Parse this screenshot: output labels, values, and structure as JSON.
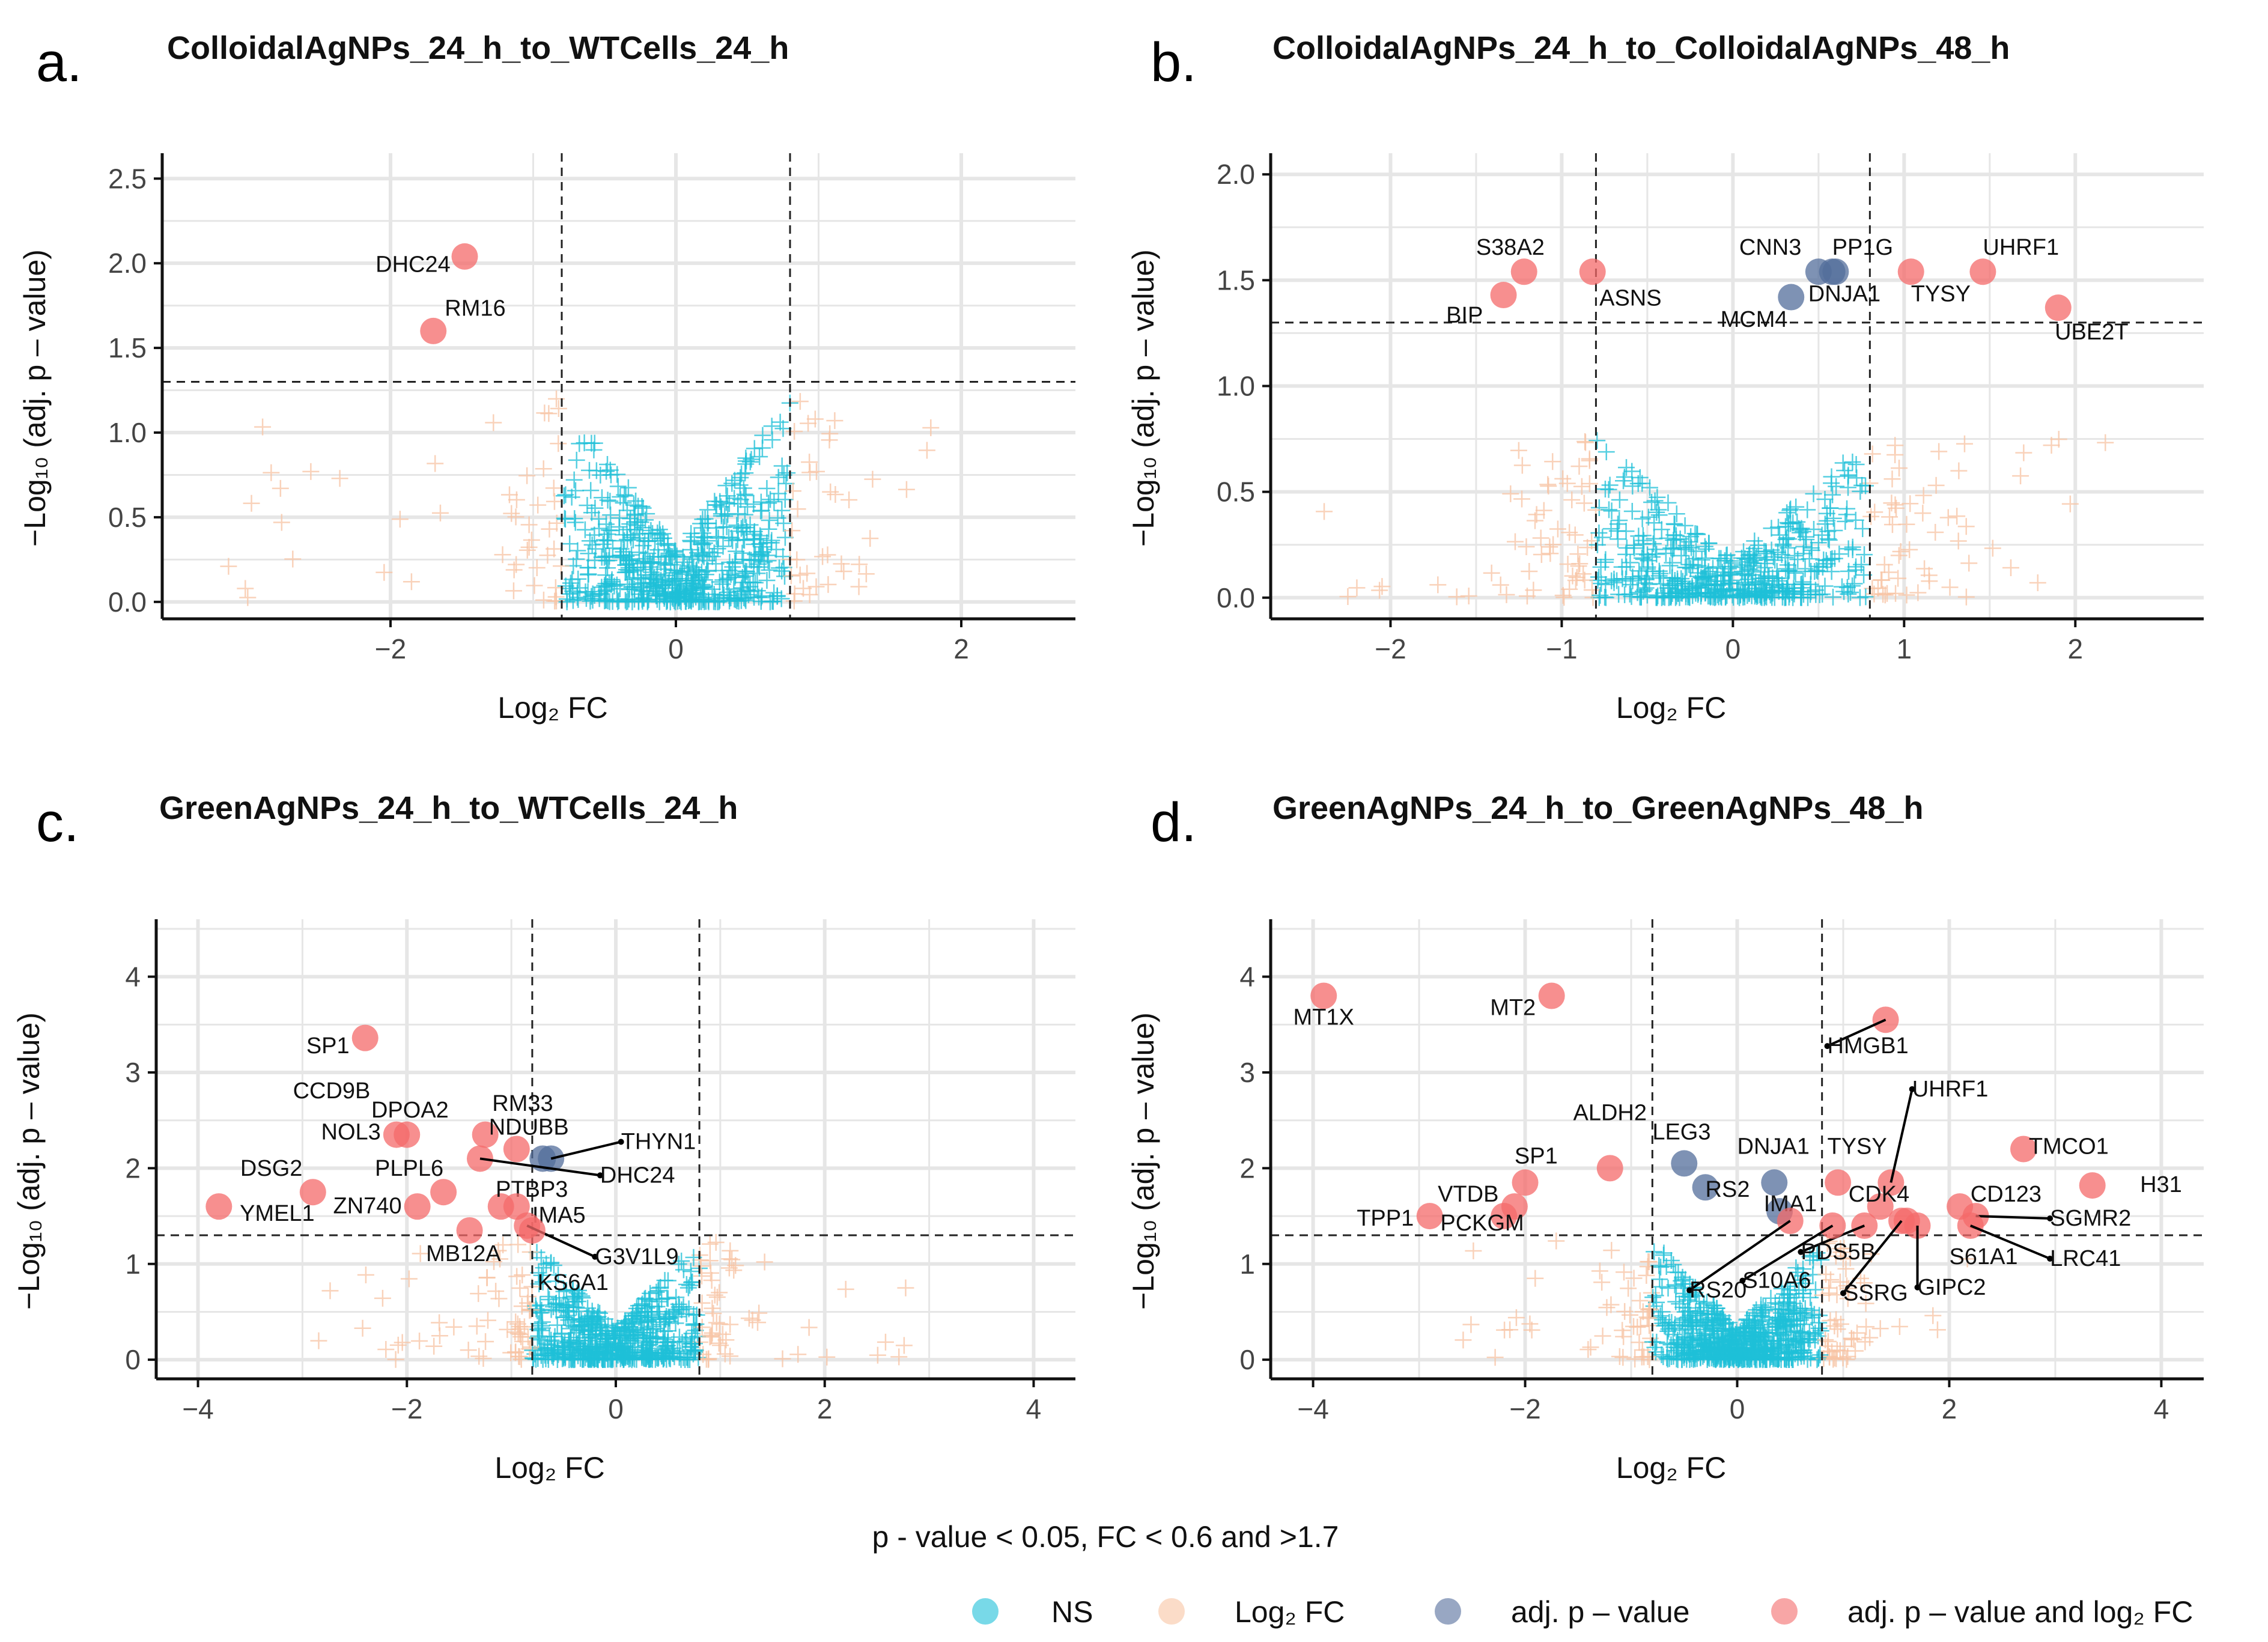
{
  "colors": {
    "ns": "#1ec0d8",
    "log2fc": "#f8c4a4",
    "adjp": "#536d9b",
    "both": "#f46a6a",
    "grid": "#e6e6e6",
    "axis": "#111111"
  },
  "legend": {
    "title": "p - value < 0.05, FC < 0.6 and >1.7",
    "items": [
      {
        "key": "ns",
        "label": "NS"
      },
      {
        "key": "log2fc",
        "label": "Log₂ FC"
      },
      {
        "key": "adjp",
        "label": "adj. p – value"
      },
      {
        "key": "both",
        "label": "adj. p – value and log₂ FC"
      }
    ]
  },
  "chart_data": [
    {
      "letter": "a.",
      "type": "scatter",
      "title": "ColloidalAgNPs_24_h_to_WTCells_24_h",
      "xlabel": "Log₂ FC",
      "ylabel": "−Log₁₀ (adj. p – value)",
      "xlim": [
        -3.6,
        2.8
      ],
      "ylim": [
        -0.1,
        2.65
      ],
      "xticks": [
        -2,
        0,
        2
      ],
      "xtick_labels": [
        "−2",
        "0",
        "2"
      ],
      "yticks": [
        0,
        0.5,
        1,
        1.5,
        2,
        2.5
      ],
      "ytick_labels": [
        "0.0",
        "0.5",
        "1.0",
        "1.5",
        "2.0",
        "2.5"
      ],
      "fc_cutoffs": [
        -0.8,
        0.8
      ],
      "p_cutoff": 1.3,
      "cloud": {
        "seed": 11,
        "xspan": [
          -3.2,
          1.9
        ],
        "outer": 1.2,
        "scale": 1.4,
        "n": 700
      },
      "points": [
        {
          "gene": "DHC24",
          "x": -1.48,
          "y": 2.04,
          "cat": "both",
          "label_x": -1.58,
          "label_y": 1.95,
          "anchor": "end"
        },
        {
          "gene": "RM16",
          "x": -1.7,
          "y": 1.6,
          "cat": "both",
          "label_x": -1.62,
          "label_y": 1.69,
          "anchor": "start"
        }
      ]
    },
    {
      "letter": "b.",
      "type": "scatter",
      "title": "ColloidalAgNPs_24_h_to_ColloidalAgNPs_48_h",
      "xlabel": "Log₂ FC",
      "ylabel": "−Log₁₀ (adj. p – value)",
      "xlim": [
        -2.7,
        2.75
      ],
      "ylim": [
        -0.1,
        2.1
      ],
      "xticks": [
        -2,
        -1,
        0,
        1,
        2
      ],
      "xtick_labels": [
        "−2",
        "−1",
        "0",
        "1",
        "2"
      ],
      "yticks": [
        0,
        0.5,
        1,
        1.5,
        2
      ],
      "ytick_labels": [
        "0.0",
        "0.5",
        "1.0",
        "1.5",
        "2.0"
      ],
      "fc_cutoffs": [
        -0.8,
        0.8
      ],
      "p_cutoff": 1.3,
      "cloud": {
        "seed": 23,
        "xspan": [
          -2.4,
          2.2
        ],
        "outer": 0.75,
        "scale": 1.6,
        "n": 650
      },
      "points": [
        {
          "gene": "S38A2",
          "x": -1.22,
          "y": 1.54,
          "cat": "both",
          "label_x": -1.1,
          "label_y": 1.62,
          "anchor": "end"
        },
        {
          "gene": "ASNS",
          "x": -0.82,
          "y": 1.54,
          "cat": "both",
          "label_x": -0.78,
          "label_y": 1.38,
          "anchor": "start"
        },
        {
          "gene": "BIP",
          "x": -1.34,
          "y": 1.43,
          "cat": "both",
          "label_x": -1.46,
          "label_y": 1.3,
          "anchor": "end"
        },
        {
          "gene": "CNN3",
          "x": 0.5,
          "y": 1.54,
          "cat": "adjp",
          "label_x": 0.4,
          "label_y": 1.62,
          "anchor": "end"
        },
        {
          "gene": "PP1G",
          "x": 0.6,
          "y": 1.54,
          "cat": "adjp",
          "label_x": 0.58,
          "label_y": 1.62,
          "anchor": "start"
        },
        {
          "gene": "MCM4",
          "x": 0.34,
          "y": 1.42,
          "cat": "adjp",
          "label_x": 0.32,
          "label_y": 1.28,
          "anchor": "end"
        },
        {
          "gene": "DNJA1",
          "x": 0.58,
          "y": 1.54,
          "cat": "adjp",
          "label_x": 0.44,
          "label_y": 1.4,
          "anchor": "start"
        },
        {
          "gene": "TYSY",
          "x": 1.04,
          "y": 1.54,
          "cat": "both",
          "label_x": 1.04,
          "label_y": 1.4,
          "anchor": "start"
        },
        {
          "gene": "UHRF1",
          "x": 1.46,
          "y": 1.54,
          "cat": "both",
          "label_x": 1.46,
          "label_y": 1.62,
          "anchor": "start"
        },
        {
          "gene": "UBE2T",
          "x": 1.9,
          "y": 1.37,
          "cat": "both",
          "label_x": 1.88,
          "label_y": 1.22,
          "anchor": "start"
        }
      ]
    },
    {
      "letter": "c.",
      "type": "scatter",
      "title": "GreenAgNPs_24_h_to_WTCells_24_h",
      "xlabel": "Log₂ FC",
      "ylabel": "−Log₁₀ (adj. p – value)",
      "xlim": [
        -4.4,
        4.4
      ],
      "ylim": [
        -0.2,
        4.6
      ],
      "xticks": [
        -4,
        -2,
        0,
        2,
        4
      ],
      "xtick_labels": [
        "−4",
        "−2",
        "0",
        "2",
        "4"
      ],
      "yticks": [
        0,
        1,
        2,
        3,
        4
      ],
      "ytick_labels": [
        "0",
        "1",
        "2",
        "3",
        "4"
      ],
      "fc_cutoffs": [
        -0.8,
        0.8
      ],
      "p_cutoff": 1.3,
      "cloud": {
        "seed": 37,
        "xspan": [
          -3.1,
          2.8
        ],
        "outer": 1.25,
        "scale": 1.5,
        "n": 700
      },
      "points": [
        {
          "gene": "SP1",
          "x": -2.4,
          "y": 3.36,
          "cat": "both",
          "label_x": -2.55,
          "label_y": 3.2,
          "anchor": "end"
        },
        {
          "gene": "CCD9B",
          "x": -2.0,
          "y": 2.35,
          "cat": "both",
          "label_x": -2.35,
          "label_y": 2.73,
          "anchor": "end"
        },
        {
          "gene": "NOL3",
          "x": -2.1,
          "y": 2.35,
          "cat": "both",
          "label_x": -2.25,
          "label_y": 2.3,
          "anchor": "end"
        },
        {
          "gene": "DPOA2",
          "x": -1.25,
          "y": 2.35,
          "cat": "both",
          "label_x": -1.6,
          "label_y": 2.53,
          "anchor": "end"
        },
        {
          "gene": "RM33",
          "x": -0.95,
          "y": 2.2,
          "cat": "both",
          "label_x": -0.6,
          "label_y": 2.6,
          "anchor": "end"
        },
        {
          "gene": "NDUBB",
          "x": -0.7,
          "y": 2.1,
          "cat": "adjp",
          "label_x": -0.45,
          "label_y": 2.35,
          "anchor": "end"
        },
        {
          "gene": "THYN1",
          "x": -0.62,
          "y": 2.1,
          "cat": "adjp",
          "label_x": 0.05,
          "label_y": 2.2,
          "anchor": "start"
        },
        {
          "gene": "DHC24",
          "x": -1.3,
          "y": 2.1,
          "cat": "both",
          "label_x": -0.15,
          "label_y": 1.85,
          "anchor": "start"
        },
        {
          "gene": "DSG2",
          "x": -2.9,
          "y": 1.75,
          "cat": "both",
          "label_x": -3.0,
          "label_y": 1.92,
          "anchor": "end"
        },
        {
          "gene": "PLPL6",
          "x": -1.65,
          "y": 1.75,
          "cat": "both",
          "label_x": -1.65,
          "label_y": 1.92,
          "anchor": "end"
        },
        {
          "gene": "YMEL1",
          "x": -3.8,
          "y": 1.6,
          "cat": "both",
          "label_x": -3.6,
          "label_y": 1.45,
          "anchor": "start"
        },
        {
          "gene": "ZN740",
          "x": -1.9,
          "y": 1.6,
          "cat": "both",
          "label_x": -2.05,
          "label_y": 1.53,
          "anchor": "end"
        },
        {
          "gene": "PTBP3",
          "x": -1.1,
          "y": 1.6,
          "cat": "both",
          "label_x": -1.15,
          "label_y": 1.7,
          "anchor": "start"
        },
        {
          "gene": "IMA5",
          "x": -0.95,
          "y": 1.6,
          "cat": "both",
          "label_x": -0.8,
          "label_y": 1.43,
          "anchor": "start"
        },
        {
          "gene": "MB12A",
          "x": -1.4,
          "y": 1.35,
          "cat": "both",
          "label_x": -1.1,
          "label_y": 1.03,
          "anchor": "end"
        },
        {
          "gene": "G3V1L9",
          "x": -0.85,
          "y": 1.4,
          "cat": "both",
          "label_x": -0.2,
          "label_y": 1.0,
          "anchor": "start"
        },
        {
          "gene": "KS6A1",
          "x": -0.8,
          "y": 1.35,
          "cat": "both",
          "label_x": -0.75,
          "label_y": 0.73,
          "anchor": "start"
        }
      ]
    },
    {
      "letter": "d.",
      "type": "scatter",
      "title": "GreenAgNPs_24_h_to_GreenAgNPs_48_h",
      "xlabel": "Log₂ FC",
      "ylabel": "−Log₁₀ (adj. p – value)",
      "xlim": [
        -4.4,
        4.4
      ],
      "ylim": [
        -0.2,
        4.6
      ],
      "xticks": [
        -4,
        -2,
        0,
        2,
        4
      ],
      "xtick_labels": [
        "−4",
        "−2",
        "0",
        "2",
        "4"
      ],
      "yticks": [
        0,
        1,
        2,
        3,
        4
      ],
      "ytick_labels": [
        "0",
        "1",
        "2",
        "3",
        "4"
      ],
      "fc_cutoffs": [
        -0.8,
        0.8
      ],
      "p_cutoff": 1.3,
      "cloud": {
        "seed": 51,
        "xspan": [
          -2.6,
          2.2
        ],
        "outer": 1.25,
        "scale": 1.45,
        "n": 800
      },
      "points": [
        {
          "gene": "MT1X",
          "x": -3.9,
          "y": 3.8,
          "cat": "both",
          "label_x": -3.9,
          "label_y": 3.5,
          "anchor": "middle"
        },
        {
          "gene": "MT2",
          "x": -1.75,
          "y": 3.8,
          "cat": "both",
          "label_x": -1.9,
          "label_y": 3.6,
          "anchor": "end"
        },
        {
          "gene": "HMGB1",
          "x": 1.4,
          "y": 3.55,
          "cat": "both",
          "label_x": 0.85,
          "label_y": 3.2,
          "anchor": "start"
        },
        {
          "gene": "ALDH2",
          "x": -1.2,
          "y": 2.0,
          "cat": "both",
          "label_x": -1.2,
          "label_y": 2.5,
          "anchor": "middle"
        },
        {
          "gene": "LEG3",
          "x": -0.5,
          "y": 2.05,
          "cat": "adjp",
          "label_x": -0.8,
          "label_y": 2.3,
          "anchor": "start"
        },
        {
          "gene": "UHRF1",
          "x": 1.45,
          "y": 1.85,
          "cat": "both",
          "label_x": 1.65,
          "label_y": 2.75,
          "anchor": "start"
        },
        {
          "gene": "TMCO1",
          "x": 2.7,
          "y": 2.2,
          "cat": "both",
          "label_x": 2.75,
          "label_y": 2.15,
          "anchor": "start"
        },
        {
          "gene": "DNJA1",
          "x": 0.35,
          "y": 1.85,
          "cat": "adjp",
          "label_x": -0.0,
          "label_y": 2.15,
          "anchor": "start"
        },
        {
          "gene": "TYSY",
          "x": 0.95,
          "y": 1.85,
          "cat": "both",
          "label_x": 0.85,
          "label_y": 2.15,
          "anchor": "start"
        },
        {
          "gene": "SP1",
          "x": -2.0,
          "y": 1.85,
          "cat": "both",
          "label_x": -2.1,
          "label_y": 2.05,
          "anchor": "start"
        },
        {
          "gene": "H31",
          "x": 3.35,
          "y": 1.82,
          "cat": "both",
          "label_x": 3.8,
          "label_y": 1.75,
          "anchor": "start"
        },
        {
          "gene": "RS2",
          "x": -0.3,
          "y": 1.8,
          "cat": "adjp",
          "label_x": -0.3,
          "label_y": 1.7,
          "anchor": "start"
        },
        {
          "gene": "VTDB",
          "x": -2.1,
          "y": 1.6,
          "cat": "both",
          "label_x": -2.25,
          "label_y": 1.65,
          "anchor": "end"
        },
        {
          "gene": "CDK4",
          "x": 1.35,
          "y": 1.6,
          "cat": "both",
          "label_x": 1.05,
          "label_y": 1.65,
          "anchor": "start"
        },
        {
          "gene": "CD123",
          "x": 2.1,
          "y": 1.6,
          "cat": "both",
          "label_x": 2.2,
          "label_y": 1.65,
          "anchor": "start"
        },
        {
          "gene": "IMA1",
          "x": 0.4,
          "y": 1.55,
          "cat": "adjp",
          "label_x": 0.25,
          "label_y": 1.55,
          "anchor": "start"
        },
        {
          "gene": "TPP1",
          "x": -2.9,
          "y": 1.5,
          "cat": "both",
          "label_x": -3.05,
          "label_y": 1.4,
          "anchor": "end"
        },
        {
          "gene": "PCKGM",
          "x": -2.2,
          "y": 1.5,
          "cat": "both",
          "label_x": -2.8,
          "label_y": 1.35,
          "anchor": "start"
        },
        {
          "gene": "SGMR2",
          "x": 2.25,
          "y": 1.5,
          "cat": "both",
          "label_x": 2.95,
          "label_y": 1.4,
          "anchor": "start"
        },
        {
          "gene": "PDS5B",
          "x": 1.2,
          "y": 1.4,
          "cat": "both",
          "label_x": 0.6,
          "label_y": 1.05,
          "anchor": "start"
        },
        {
          "gene": "S61A1",
          "x": 1.6,
          "y": 1.45,
          "cat": "both",
          "label_x": 2.0,
          "label_y": 1.0,
          "anchor": "start"
        },
        {
          "gene": "LRC41",
          "x": 2.2,
          "y": 1.4,
          "cat": "both",
          "label_x": 2.95,
          "label_y": 0.98,
          "anchor": "start"
        },
        {
          "gene": "RS20",
          "x": 0.5,
          "y": 1.45,
          "cat": "both",
          "label_x": -0.45,
          "label_y": 0.65,
          "anchor": "start"
        },
        {
          "gene": "S10A6",
          "x": 0.9,
          "y": 1.4,
          "cat": "both",
          "label_x": 0.05,
          "label_y": 0.75,
          "anchor": "start"
        },
        {
          "gene": "SSRG",
          "x": 1.55,
          "y": 1.45,
          "cat": "both",
          "label_x": 1.0,
          "label_y": 0.62,
          "anchor": "start"
        },
        {
          "gene": "GIPC2",
          "x": 1.7,
          "y": 1.4,
          "cat": "both",
          "label_x": 1.7,
          "label_y": 0.68,
          "anchor": "start"
        }
      ]
    }
  ]
}
